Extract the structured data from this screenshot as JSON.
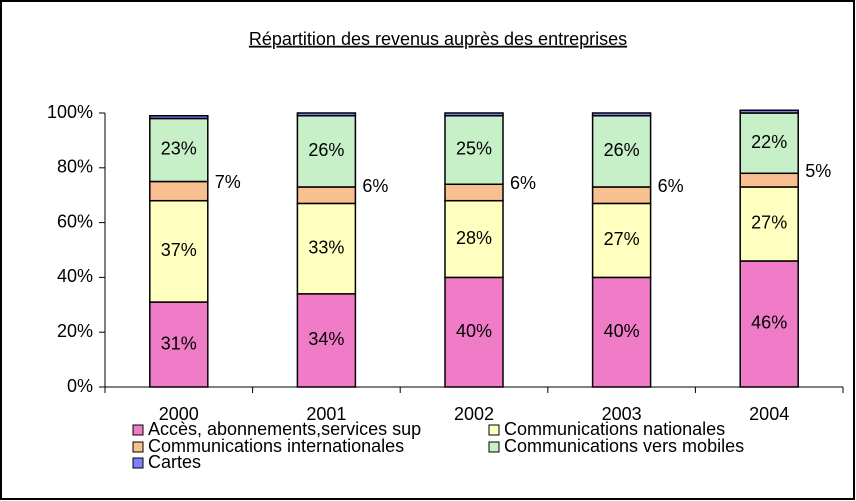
{
  "chart_data": {
    "type": "stacked_bar",
    "title": "Répartition des revenus auprès des entreprises",
    "categories": [
      "2000",
      "2001",
      "2002",
      "2003",
      "2004"
    ],
    "series": [
      {
        "name": "Accès, abonnements,services sup",
        "color": "#f07cc8",
        "values": [
          31,
          34,
          40,
          40,
          46
        ],
        "value_labels": [
          "31%",
          "34%",
          "40%",
          "40%",
          "46%"
        ]
      },
      {
        "name": "Communications nationales",
        "color": "#ffffc0",
        "values": [
          37,
          33,
          28,
          27,
          27
        ],
        "value_labels": [
          "37%",
          "33%",
          "28%",
          "27%",
          "27%"
        ]
      },
      {
        "name": "Communications internationales",
        "color": "#f8c090",
        "values": [
          7,
          6,
          6,
          6,
          5
        ],
        "value_labels": [
          "7%",
          "6%",
          "6%",
          "6%",
          "5%"
        ]
      },
      {
        "name": "Communications vers mobiles",
        "color": "#c8f0c8",
        "values": [
          23,
          26,
          25,
          26,
          22
        ],
        "value_labels": [
          "23%",
          "26%",
          "25%",
          "26%",
          "22%"
        ]
      },
      {
        "name": "Cartes",
        "color": "#8080ff",
        "values": [
          1,
          1,
          1,
          1,
          1
        ]
      }
    ],
    "ylim": [
      0,
      100
    ],
    "yticks": [
      {
        "value": 0,
        "label": "0%"
      },
      {
        "value": 20,
        "label": "20%"
      },
      {
        "value": 40,
        "label": "40%"
      },
      {
        "value": 60,
        "label": "60%"
      },
      {
        "value": 80,
        "label": "80%"
      },
      {
        "value": 100,
        "label": "100%"
      }
    ],
    "legend": "bottom"
  }
}
